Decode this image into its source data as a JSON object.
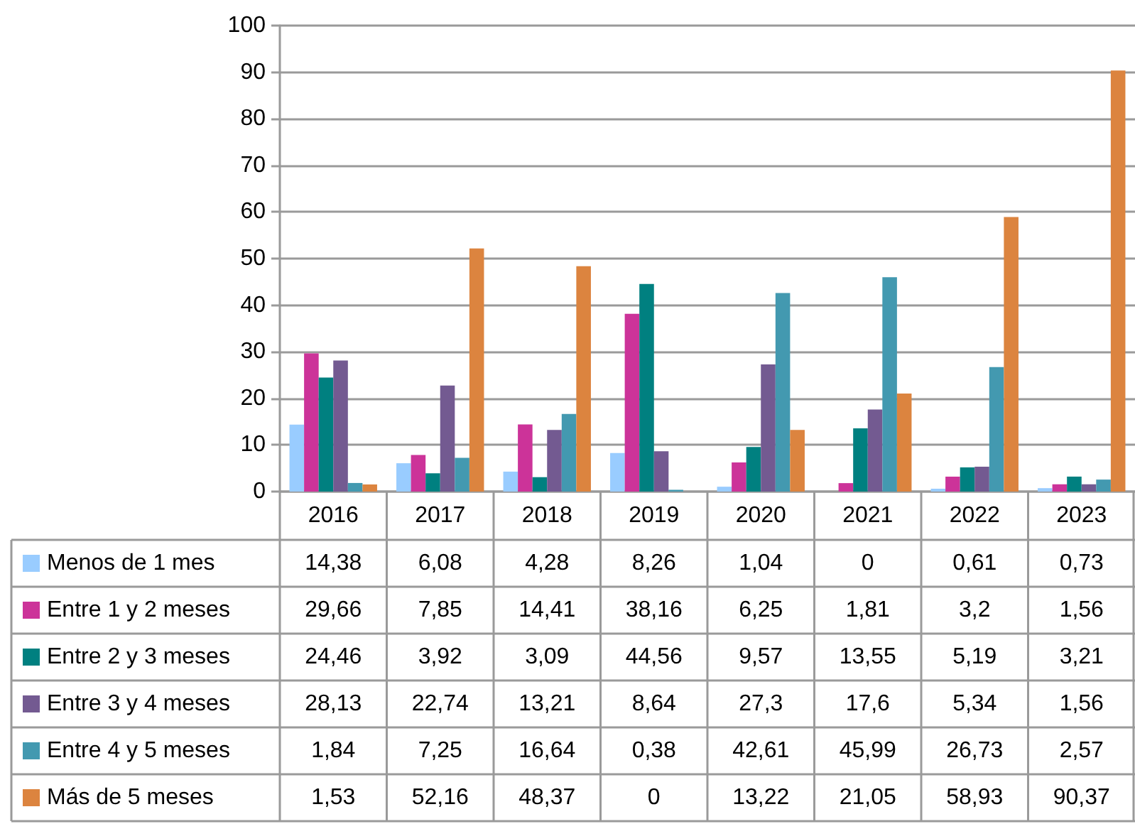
{
  "chart_data": {
    "type": "bar",
    "categories": [
      "2016",
      "2017",
      "2018",
      "2019",
      "2020",
      "2021",
      "2022",
      "2023"
    ],
    "ylim": [
      0,
      100
    ],
    "yticks": [
      0,
      10,
      20,
      30,
      40,
      50,
      60,
      70,
      80,
      90,
      100
    ],
    "grid": "y",
    "legend": "bottom left",
    "series": [
      {
        "name": "Menos de 1 mes",
        "color": "#99ccff",
        "values": [
          14.38,
          6.08,
          4.28,
          8.26,
          1.04,
          0,
          0.61,
          0.73
        ],
        "value_labels": [
          "14,38",
          "6,08",
          "4,28",
          "8,26",
          "1,04",
          "0",
          "0,61",
          "0,73"
        ]
      },
      {
        "name": "Entre 1 y 2 meses",
        "color": "#cc3399",
        "values": [
          29.66,
          7.85,
          14.41,
          38.16,
          6.25,
          1.81,
          3.2,
          1.56
        ],
        "value_labels": [
          "29,66",
          "7,85",
          "14,41",
          "38,16",
          "6,25",
          "1,81",
          "3,2",
          "1,56"
        ]
      },
      {
        "name": "Entre 2 y 3 meses",
        "color": "#008080",
        "values": [
          24.46,
          3.92,
          3.09,
          44.56,
          9.57,
          13.55,
          5.19,
          3.21
        ],
        "value_labels": [
          "24,46",
          "3,92",
          "3,09",
          "44,56",
          "9,57",
          "13,55",
          "5,19",
          "3,21"
        ]
      },
      {
        "name": "Entre 3 y 4 meses",
        "color": "#735a91",
        "values": [
          28.13,
          22.74,
          13.21,
          8.64,
          27.3,
          17.6,
          5.34,
          1.56
        ],
        "value_labels": [
          "28,13",
          "22,74",
          "13,21",
          "8,64",
          "27,3",
          "17,6",
          "5,34",
          "1,56"
        ]
      },
      {
        "name": "Entre 4 y 5 meses",
        "color": "#4399b0",
        "values": [
          1.84,
          7.25,
          16.64,
          0.38,
          42.61,
          45.99,
          26.73,
          2.57
        ],
        "value_labels": [
          "1,84",
          "7,25",
          "16,64",
          "0,38",
          "42,61",
          "45,99",
          "26,73",
          "2,57"
        ]
      },
      {
        "name": "Más de 5 meses",
        "color": "#dc843f",
        "values": [
          1.53,
          52.16,
          48.37,
          0,
          13.22,
          21.05,
          58.93,
          90.37
        ],
        "value_labels": [
          "1,53",
          "52,16",
          "48,37",
          "0",
          "13,22",
          "21,05",
          "58,93",
          "90,37"
        ]
      }
    ]
  }
}
